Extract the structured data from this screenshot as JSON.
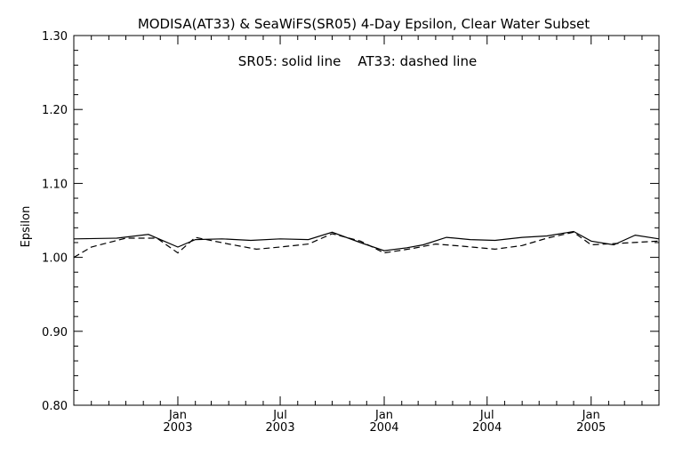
{
  "chart_data": {
    "type": "line",
    "title": "MODISA(AT33) & SeaWiFS(SR05) 4-Day Epsilon, Clear Water Subset",
    "annotation": "SR05: solid line    AT33: dashed line",
    "ylabel": "Epsilon",
    "xlabel": "",
    "ylim": [
      0.8,
      1.3
    ],
    "yticks": [
      "0.80",
      "0.90",
      "1.00",
      "1.10",
      "1.20",
      "1.30"
    ],
    "ytick_values": [
      0.8,
      0.9,
      1.0,
      1.1,
      1.2,
      1.3
    ],
    "xlim": [
      "2002-07-01",
      "2005-05-01"
    ],
    "xticks": [
      {
        "date": "2003-01-01",
        "month": "Jan",
        "year": "2003"
      },
      {
        "date": "2003-07-01",
        "month": "Jul",
        "year": "2003"
      },
      {
        "date": "2004-01-01",
        "month": "Jan",
        "year": "2004"
      },
      {
        "date": "2004-07-01",
        "month": "Jul",
        "year": "2004"
      },
      {
        "date": "2005-01-01",
        "month": "Jan",
        "year": "2005"
      }
    ],
    "grid": false,
    "series": [
      {
        "line_style": "solid",
        "color": "#000000",
        "x": [
          "2002-07-01",
          "2002-09-15",
          "2002-11-10",
          "2003-01-01",
          "2003-02-01",
          "2003-03-20",
          "2003-05-10",
          "2003-07-01",
          "2003-08-20",
          "2003-10-01",
          "2003-11-20",
          "2004-01-01",
          "2004-02-10",
          "2004-03-10",
          "2004-04-20",
          "2004-06-01",
          "2004-07-15",
          "2004-09-01",
          "2004-10-15",
          "2004-12-01",
          "2005-01-01",
          "2005-02-10",
          "2005-03-20",
          "2005-05-01"
        ],
        "y": [
          1.025,
          1.026,
          1.031,
          1.014,
          1.024,
          1.025,
          1.023,
          1.025,
          1.024,
          1.034,
          1.02,
          1.009,
          1.013,
          1.017,
          1.027,
          1.024,
          1.023,
          1.027,
          1.029,
          1.035,
          1.022,
          1.017,
          1.03,
          1.025
        ]
      },
      {
        "line_style": "dashed",
        "color": "#000000",
        "x": [
          "2002-07-01",
          "2002-08-01",
          "2002-10-01",
          "2002-11-25",
          "2003-01-01",
          "2003-02-01",
          "2003-04-01",
          "2003-05-20",
          "2003-07-01",
          "2003-08-20",
          "2003-10-01",
          "2003-11-20",
          "2004-01-01",
          "2004-02-20",
          "2004-04-01",
          "2004-05-20",
          "2004-07-15",
          "2004-09-01",
          "2004-10-15",
          "2004-12-01",
          "2005-01-01",
          "2005-02-20",
          "2005-05-01"
        ],
        "y": [
          1.0,
          1.014,
          1.026,
          1.026,
          1.006,
          1.027,
          1.018,
          1.011,
          1.014,
          1.018,
          1.032,
          1.022,
          1.006,
          1.012,
          1.018,
          1.015,
          1.011,
          1.016,
          1.026,
          1.034,
          1.017,
          1.019,
          1.022
        ]
      }
    ]
  }
}
